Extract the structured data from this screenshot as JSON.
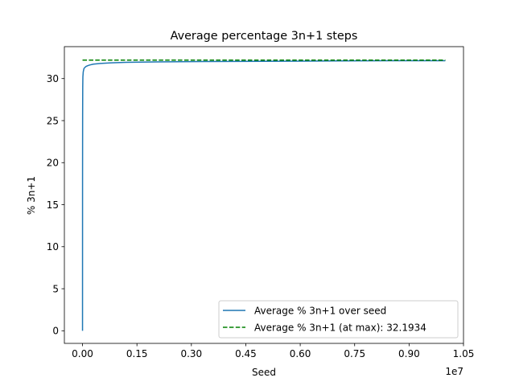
{
  "chart_data": {
    "type": "line",
    "title": "Average percentage 3n+1 steps",
    "xlabel": "Seed",
    "ylabel": "% 3n+1",
    "x_offset_label": "1e7",
    "xlim": [
      -0.05,
      1.05
    ],
    "ylim": [
      -1.5,
      33.8
    ],
    "xticks": [
      0.0,
      0.15,
      0.3,
      0.45,
      0.6,
      0.75,
      0.9,
      1.05
    ],
    "xtick_labels": [
      "0.00",
      "0.15",
      "0.30",
      "0.45",
      "0.60",
      "0.75",
      "0.90",
      "1.05"
    ],
    "yticks": [
      0,
      5,
      10,
      15,
      20,
      25,
      30
    ],
    "ytick_labels": [
      "0",
      "5",
      "10",
      "15",
      "20",
      "25",
      "30"
    ],
    "grid": false,
    "legend_position": "lower-right",
    "series": [
      {
        "name": "Average % 3n+1 over seed",
        "style": "solid",
        "color": "#1f77b4",
        "x": [
          0.0,
          0.0001,
          0.0003,
          0.0006,
          0.001,
          0.002,
          0.004,
          0.007,
          0.01,
          0.015,
          0.02,
          0.03,
          0.05,
          0.08,
          0.12,
          0.2,
          0.35,
          0.5,
          0.7,
          0.85,
          1.0
        ],
        "y": [
          0.0,
          18.0,
          25.5,
          29.0,
          30.2,
          30.8,
          31.2,
          31.35,
          31.45,
          31.55,
          31.62,
          31.72,
          31.8,
          31.88,
          31.93,
          31.98,
          32.03,
          32.06,
          32.1,
          32.12,
          32.12
        ]
      },
      {
        "name": "Average % 3n+1 (at max): 32.1934",
        "style": "dashed",
        "color": "#008000",
        "x": [
          0.0,
          1.0
        ],
        "y": [
          32.1934,
          32.1934
        ]
      }
    ]
  }
}
